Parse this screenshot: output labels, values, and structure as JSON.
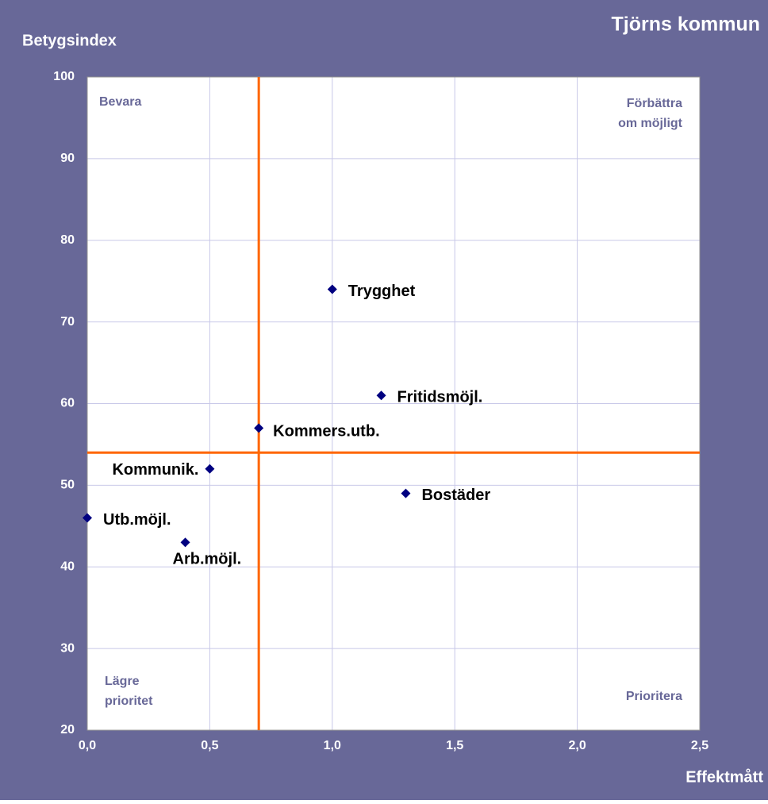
{
  "chart_data": {
    "type": "scatter",
    "title": "Tjörns kommun",
    "ylabel": "Betygsindex",
    "xlabel": "Effektmått",
    "x": [
      1.0,
      1.2,
      0.7,
      0.5,
      1.3,
      0.0,
      0.4
    ],
    "values": [
      74,
      61,
      57,
      52,
      49,
      46,
      43
    ],
    "labels": [
      "Trygghet",
      "Fritidsmöjl.",
      "Kommers.utb.",
      "Kommunik.",
      "Bostäder",
      "Utb.möjl.",
      "Arb.möjl."
    ],
    "color": "#000080",
    "xlim": [
      0,
      2.5
    ],
    "ylim": [
      20,
      100
    ],
    "xticks": [
      {
        "value": 0,
        "label": "0,0"
      },
      {
        "value": 0.5,
        "label": "0,5"
      },
      {
        "value": 1.0,
        "label": "1,0"
      },
      {
        "value": 1.5,
        "label": "1,5"
      },
      {
        "value": 2.0,
        "label": "2,0"
      },
      {
        "value": 2.5,
        "label": "2,5"
      }
    ],
    "yticks": [
      20,
      30,
      40,
      50,
      60,
      70,
      80,
      90,
      100
    ],
    "grid": true,
    "reference_lines": {
      "x": 0.7,
      "y": 54,
      "color": "#ff6600"
    },
    "quadrants": {
      "top_left": [
        "Bevara"
      ],
      "top_right": [
        "Förbättra",
        "om möjligt"
      ],
      "bottom_left": [
        "Lägre",
        "prioritet"
      ],
      "bottom_right": [
        "Prioritera"
      ]
    }
  }
}
